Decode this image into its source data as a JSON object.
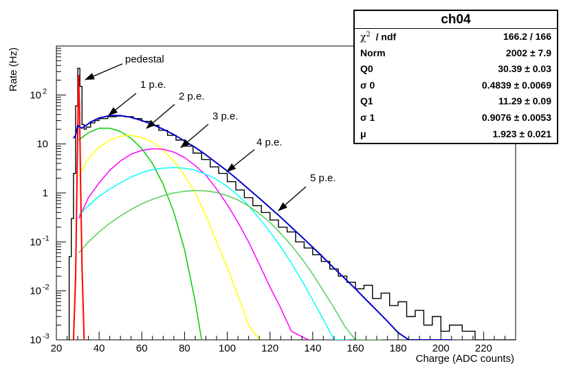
{
  "chart_data": {
    "type": "line",
    "xlabel": "Charge (ADC counts)",
    "ylabel": "Rate (Hz)",
    "xlim": [
      20,
      235
    ],
    "ylim": [
      0.001,
      1000
    ],
    "yscale": "log",
    "x_ticks": [
      20,
      40,
      60,
      80,
      100,
      120,
      140,
      160,
      180,
      200,
      220
    ],
    "y_ticks": [
      {
        "value": 0.001,
        "base": "10",
        "exp": "-3"
      },
      {
        "value": 0.01,
        "base": "10",
        "exp": "-2"
      },
      {
        "value": 0.1,
        "base": "10",
        "exp": "-1"
      },
      {
        "value": 1,
        "base": "1",
        "exp": ""
      },
      {
        "value": 10,
        "base": "10",
        "exp": ""
      },
      {
        "value": 100,
        "base": "10",
        "exp": "2"
      }
    ],
    "histogram": {
      "color": "#000000",
      "bins": [
        [
          26,
          0.05
        ],
        [
          27,
          0.3
        ],
        [
          28,
          2.5
        ],
        [
          29,
          60
        ],
        [
          30,
          350
        ],
        [
          31,
          150
        ],
        [
          32,
          25
        ],
        [
          33,
          20
        ],
        [
          34,
          22
        ],
        [
          36,
          27
        ],
        [
          38,
          30
        ],
        [
          40,
          33
        ],
        [
          44,
          36
        ],
        [
          48,
          37
        ],
        [
          52,
          36
        ],
        [
          56,
          33
        ],
        [
          60,
          29
        ],
        [
          64,
          24
        ],
        [
          68,
          19
        ],
        [
          72,
          15
        ],
        [
          76,
          12
        ],
        [
          80,
          9
        ],
        [
          84,
          6.5
        ],
        [
          88,
          4.8
        ],
        [
          92,
          3.4
        ],
        [
          96,
          2.5
        ],
        [
          100,
          1.7
        ],
        [
          104,
          1.15
        ],
        [
          108,
          0.8
        ],
        [
          112,
          0.55
        ],
        [
          116,
          0.4
        ],
        [
          120,
          0.28
        ],
        [
          124,
          0.2
        ],
        [
          128,
          0.16
        ],
        [
          132,
          0.1
        ],
        [
          136,
          0.075
        ],
        [
          140,
          0.055
        ],
        [
          144,
          0.04
        ],
        [
          148,
          0.028
        ],
        [
          152,
          0.02
        ],
        [
          156,
          0.015
        ],
        [
          160,
          0.011
        ],
        [
          164,
          0.013
        ],
        [
          168,
          0.007
        ],
        [
          172,
          0.009
        ],
        [
          176,
          0.005
        ],
        [
          180,
          0.006
        ],
        [
          184,
          0.003
        ],
        [
          188,
          0.004
        ],
        [
          192,
          0.002
        ],
        [
          196,
          0.003
        ],
        [
          200,
          0.0015
        ],
        [
          204,
          0.002
        ],
        [
          210,
          0.0015
        ],
        [
          216,
          0.001
        ],
        [
          234,
          0.001
        ]
      ]
    },
    "fit_total": {
      "color": "#0000cc",
      "points": [
        [
          28,
          13
        ],
        [
          29,
          15
        ],
        [
          30,
          24
        ],
        [
          31,
          22
        ],
        [
          32,
          21
        ],
        [
          34,
          24
        ],
        [
          36,
          28
        ],
        [
          40,
          34
        ],
        [
          45,
          38
        ],
        [
          50,
          38
        ],
        [
          55,
          35
        ],
        [
          60,
          30
        ],
        [
          65,
          25
        ],
        [
          70,
          20
        ],
        [
          75,
          15.5
        ],
        [
          80,
          11.5
        ],
        [
          85,
          8.5
        ],
        [
          90,
          6
        ],
        [
          95,
          4.1
        ],
        [
          100,
          2.8
        ],
        [
          105,
          1.85
        ],
        [
          110,
          1.2
        ],
        [
          115,
          0.78
        ],
        [
          120,
          0.5
        ],
        [
          125,
          0.32
        ],
        [
          130,
          0.2
        ],
        [
          135,
          0.125
        ],
        [
          140,
          0.078
        ],
        [
          145,
          0.048
        ],
        [
          150,
          0.029
        ],
        [
          155,
          0.018
        ],
        [
          160,
          0.011
        ],
        [
          165,
          0.0066
        ],
        [
          170,
          0.004
        ],
        [
          175,
          0.0024
        ],
        [
          180,
          0.0014
        ],
        [
          185,
          0.00085
        ],
        [
          190,
          0.0005
        ],
        [
          195,
          0.0003
        ],
        [
          200,
          0.00017
        ],
        [
          205,
          0.0001
        ]
      ]
    },
    "pedestal_curve": {
      "color": "#ff0000",
      "points": [
        [
          28,
          0.001
        ],
        [
          29,
          0.02
        ],
        [
          29.5,
          0.6
        ],
        [
          30,
          20
        ],
        [
          30.4,
          250
        ],
        [
          30.8,
          60
        ],
        [
          31.3,
          2
        ],
        [
          32,
          0.03
        ],
        [
          33,
          0.001
        ]
      ]
    },
    "pe_curves": [
      {
        "label": "1 p.e.",
        "color": "#00cc00",
        "points": [
          [
            30.5,
            12
          ],
          [
            35,
            17
          ],
          [
            40,
            21
          ],
          [
            45,
            21
          ],
          [
            50,
            18
          ],
          [
            55,
            13
          ],
          [
            60,
            8
          ],
          [
            65,
            4
          ],
          [
            70,
            1.5
          ],
          [
            75,
            0.4
          ],
          [
            80,
            0.07
          ],
          [
            85,
            0.006
          ],
          [
            88,
            0.001
          ]
        ]
      },
      {
        "label": "2 p.e.",
        "color": "#ffff00",
        "points": [
          [
            30.5,
            2.2
          ],
          [
            35,
            5
          ],
          [
            40,
            8.5
          ],
          [
            45,
            12
          ],
          [
            50,
            14.5
          ],
          [
            55,
            15
          ],
          [
            60,
            13.5
          ],
          [
            65,
            11
          ],
          [
            70,
            7.5
          ],
          [
            75,
            4.5
          ],
          [
            80,
            2.3
          ],
          [
            85,
            1
          ],
          [
            90,
            0.35
          ],
          [
            95,
            0.1
          ],
          [
            100,
            0.03
          ],
          [
            105,
            0.008
          ],
          [
            110,
            0.002
          ],
          [
            115,
            0.001
          ]
        ]
      },
      {
        "label": "3 p.e.",
        "color": "#ff00ff",
        "points": [
          [
            30.5,
            0.3
          ],
          [
            35,
            0.8
          ],
          [
            40,
            1.6
          ],
          [
            45,
            2.9
          ],
          [
            50,
            4.5
          ],
          [
            55,
            6.2
          ],
          [
            60,
            7.4
          ],
          [
            65,
            8
          ],
          [
            70,
            7.8
          ],
          [
            75,
            6.8
          ],
          [
            80,
            5.3
          ],
          [
            85,
            3.6
          ],
          [
            90,
            2.3
          ],
          [
            95,
            1.2
          ],
          [
            100,
            0.58
          ],
          [
            105,
            0.25
          ],
          [
            110,
            0.1
          ],
          [
            115,
            0.035
          ],
          [
            120,
            0.012
          ],
          [
            125,
            0.0045
          ],
          [
            130,
            0.0015
          ],
          [
            138,
            0.001
          ]
        ]
      },
      {
        "label": "4 p.e.",
        "color": "#00ffff",
        "points": [
          [
            30.5,
            0.35
          ],
          [
            35,
            0.55
          ],
          [
            40,
            0.85
          ],
          [
            45,
            1.2
          ],
          [
            50,
            1.6
          ],
          [
            55,
            2.1
          ],
          [
            60,
            2.6
          ],
          [
            65,
            3
          ],
          [
            70,
            3.2
          ],
          [
            75,
            3.3
          ],
          [
            80,
            3.2
          ],
          [
            85,
            2.9
          ],
          [
            90,
            2.4
          ],
          [
            95,
            1.9
          ],
          [
            100,
            1.35
          ],
          [
            105,
            0.9
          ],
          [
            110,
            0.55
          ],
          [
            115,
            0.3
          ],
          [
            120,
            0.16
          ],
          [
            125,
            0.08
          ],
          [
            130,
            0.037
          ],
          [
            135,
            0.016
          ],
          [
            140,
            0.0065
          ],
          [
            145,
            0.0026
          ],
          [
            150,
            0.001
          ],
          [
            157,
            0.001
          ]
        ]
      },
      {
        "label": "5 p.e.",
        "color": "#55cc55",
        "points": [
          [
            30.5,
            0.06
          ],
          [
            35,
            0.1
          ],
          [
            40,
            0.16
          ],
          [
            45,
            0.24
          ],
          [
            50,
            0.34
          ],
          [
            55,
            0.46
          ],
          [
            60,
            0.6
          ],
          [
            65,
            0.74
          ],
          [
            70,
            0.88
          ],
          [
            75,
            1
          ],
          [
            80,
            1.08
          ],
          [
            85,
            1.12
          ],
          [
            90,
            1.1
          ],
          [
            95,
            1.02
          ],
          [
            100,
            0.88
          ],
          [
            105,
            0.72
          ],
          [
            110,
            0.54
          ],
          [
            115,
            0.38
          ],
          [
            120,
            0.25
          ],
          [
            125,
            0.15
          ],
          [
            130,
            0.085
          ],
          [
            135,
            0.045
          ],
          [
            140,
            0.022
          ],
          [
            145,
            0.01
          ],
          [
            150,
            0.0045
          ],
          [
            155,
            0.0019
          ],
          [
            160,
            0.0008
          ],
          [
            172,
            0.001
          ]
        ]
      }
    ],
    "annotations": [
      {
        "text": "pedestal",
        "label_at": [
          182,
          91
        ],
        "arrow_from": [
          178,
          93
        ],
        "arrow_to": [
          124,
          116
        ]
      },
      {
        "text": "1 p.e.",
        "label_at": [
          204,
          128
        ],
        "arrow_from": [
          198,
          136
        ],
        "arrow_to": [
          158,
          168
        ]
      },
      {
        "text": "2 p.e.",
        "label_at": [
          260,
          145
        ],
        "arrow_from": [
          254,
          152
        ],
        "arrow_to": [
          213,
          187
        ]
      },
      {
        "text": "3 p.e.",
        "label_at": [
          309,
          174
        ],
        "arrow_from": [
          303,
          181
        ],
        "arrow_to": [
          263,
          215
        ]
      },
      {
        "text": "4  p.e.",
        "label_at": [
          373,
          212
        ],
        "arrow_from": [
          370,
          218
        ],
        "arrow_to": [
          330,
          250
        ]
      },
      {
        "text": "5 p.e.",
        "label_at": [
          451,
          264
        ],
        "arrow_from": [
          445,
          272
        ],
        "arrow_to": [
          405,
          307
        ]
      }
    ]
  },
  "stats": {
    "title": "ch04",
    "rows": [
      {
        "key": "χ",
        "key_sup": "2",
        "key_rest": "  / ndf",
        "value": "166.2 / 166"
      },
      {
        "key": "Norm",
        "value": "2002  ± 7.9"
      },
      {
        "key": "Q0",
        "value": "30.39  ± 0.03"
      },
      {
        "key": "σ 0",
        "value": "0.4839  ± 0.0069"
      },
      {
        "key": "Q1",
        "value": "11.29  ± 0.09"
      },
      {
        "key": "σ 1",
        "value": "0.9076  ± 0.0053"
      },
      {
        "key": "μ",
        "value": "1.923  ± 0.021"
      }
    ]
  }
}
